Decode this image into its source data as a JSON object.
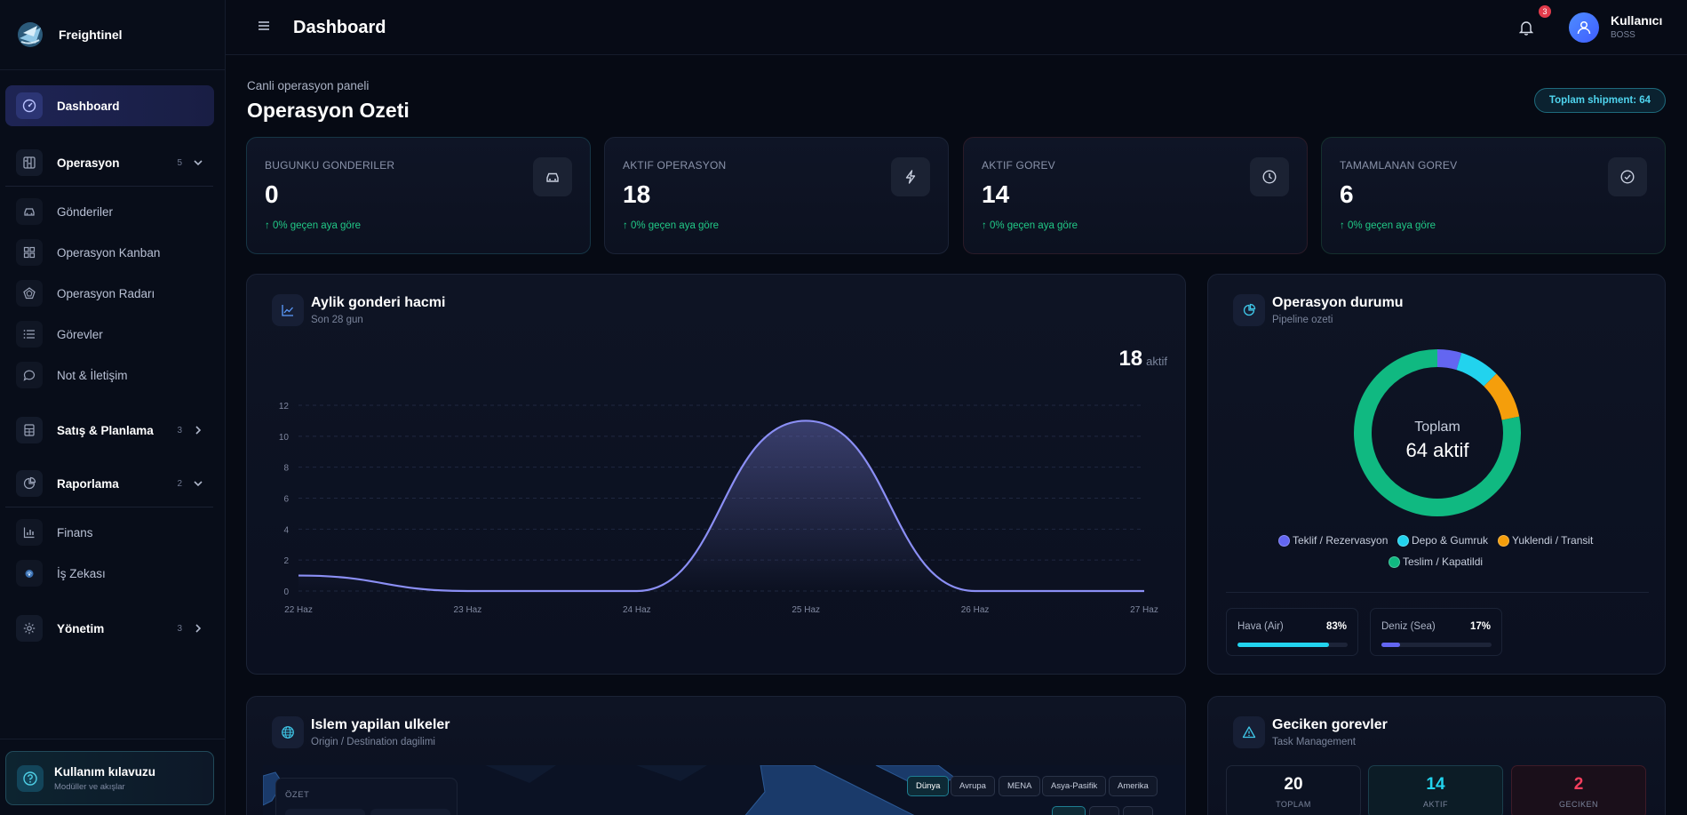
{
  "brand": {
    "name": "Freightinel"
  },
  "sidebar": {
    "dashboard": "Dashboard",
    "operasyon": {
      "label": "Operasyon",
      "count": "5"
    },
    "sub_ops": [
      "Gönderiler",
      "Operasyon Kanban",
      "Operasyon Radarı",
      "Görevler",
      "Not & İletişim"
    ],
    "satis": {
      "label": "Satış & Planlama",
      "count": "3"
    },
    "raporlama": {
      "label": "Raporlama",
      "count": "2"
    },
    "sub_rapor": [
      "Finans",
      "İş Zekası"
    ],
    "yonetim": {
      "label": "Yönetim",
      "count": "3"
    },
    "guide": {
      "title": "Kullanım kılavuzu",
      "subtitle": "Modüller ve akışlar"
    }
  },
  "topbar": {
    "title": "Dashboard",
    "notifications": "3",
    "user_name": "Kullanıcı",
    "user_role": "BOSS"
  },
  "header": {
    "subtitle": "Canli operasyon paneli",
    "title": "Operasyon Ozeti",
    "shipment_pill": "Toplam shipment: 64"
  },
  "stats": [
    {
      "label": "BUGUNKU GONDERILER",
      "value": "0",
      "trend": "0% geçen aya göre",
      "icon": "car-icon"
    },
    {
      "label": "AKTIF OPERASYON",
      "value": "18",
      "trend": "0% geçen aya göre",
      "icon": "lightning-icon"
    },
    {
      "label": "AKTIF GOREV",
      "value": "14",
      "trend": "0% geçen aya göre",
      "icon": "clock-icon"
    },
    {
      "label": "TAMAMLANAN GOREV",
      "value": "6",
      "trend": "0% geçen aya göre",
      "icon": "check-circle-icon"
    }
  ],
  "volume_panel": {
    "title": "Aylik gonderi hacmi",
    "subtitle": "Son 28 gun",
    "big_value": "18",
    "big_unit": "aktif"
  },
  "status_panel": {
    "title": "Operasyon durumu",
    "subtitle": "Pipeline ozeti",
    "center_label": "Toplam",
    "center_value": "64 aktif",
    "modes": [
      {
        "label": "Hava (Air)",
        "pct": "83%",
        "fraction": 0.83,
        "color": "#22d3ee"
      },
      {
        "label": "Deniz (Sea)",
        "pct": "17%",
        "fraction": 0.17,
        "color": "#6366f1"
      }
    ]
  },
  "countries_panel": {
    "title": "Islem yapilan ulkeler",
    "subtitle": "Origin / Destination dagilimi",
    "summary_label": "ÖZET",
    "regions": [
      "Dünya",
      "Avrupa",
      "MENA",
      "Asya-Pasifik",
      "Amerika"
    ]
  },
  "late_panel": {
    "title": "Geciken gorevler",
    "subtitle": "Task Management",
    "boxes": [
      {
        "value": "20",
        "label": "TOPLAM",
        "color": "#ffffff"
      },
      {
        "value": "14",
        "label": "AKTIF",
        "color": "#22d3ee"
      },
      {
        "value": "2",
        "label": "GECIKEN",
        "color": "#f43f5e"
      }
    ]
  },
  "chart_data": [
    {
      "type": "area",
      "title": "Aylik gonderi hacmi",
      "x": [
        "22 Haz",
        "23 Haz",
        "24 Haz",
        "25 Haz",
        "26 Haz",
        "27 Haz"
      ],
      "values": [
        1,
        0,
        0,
        11,
        0,
        0
      ],
      "ylim": [
        0,
        12
      ],
      "yticks": [
        0,
        2,
        4,
        6,
        8,
        10,
        12
      ],
      "grid": true,
      "color": "#8b8ff5"
    },
    {
      "type": "pie",
      "title": "Operasyon durumu",
      "labels": [
        "Teklif / Rezervasyon",
        "Depo & Gumruk",
        "Yuklendi / Transit",
        "Teslim / Kapatildi"
      ],
      "values": [
        3,
        5,
        6,
        50
      ],
      "colors": [
        "#6366f1",
        "#22d3ee",
        "#f59e0b",
        "#10b981"
      ],
      "legend": "bottom"
    }
  ]
}
